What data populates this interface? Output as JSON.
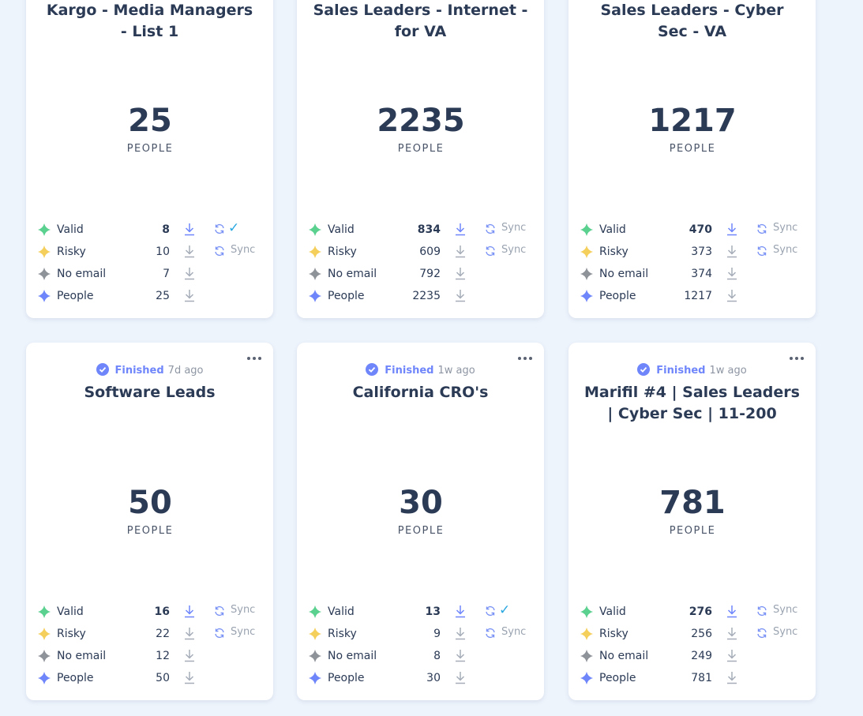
{
  "cards": [
    {
      "title": "Kargo - Media Managers - List 1",
      "unit": "PEOPLE",
      "rows": [
        {
          "label": "Valid",
          "value": 8,
          "color": "#5bd190",
          "sync": "✓"
        },
        {
          "label": "Risky",
          "value": 10,
          "color": "#f5cf5b",
          "sync": "Sync"
        },
        {
          "label": "No email",
          "value": 7,
          "color": "#8e9299",
          "arc_color": "#6f86fb"
        },
        {
          "label": "People",
          "value": 25,
          "color": "#6f86fb"
        }
      ]
    },
    {
      "title": "Sales Leaders - Internet - for VA",
      "unit": "PEOPLE",
      "rows": [
        {
          "label": "Valid",
          "value": 834,
          "color": "#5bd190",
          "sync": "Sync"
        },
        {
          "label": "Risky",
          "value": 609,
          "color": "#f5cf5b",
          "sync": "Sync"
        },
        {
          "label": "No email",
          "value": 792,
          "color": "#8e9299",
          "arc_color": "#6f86fb"
        },
        {
          "label": "People",
          "value": 2235,
          "color": "#6f86fb"
        }
      ]
    },
    {
      "title": "Sales Leaders - Cyber Sec - VA",
      "unit": "PEOPLE",
      "rows": [
        {
          "label": "Valid",
          "value": 470,
          "color": "#5bd190",
          "sync": "Sync"
        },
        {
          "label": "Risky",
          "value": 373,
          "color": "#f5cf5b",
          "sync": "Sync"
        },
        {
          "label": "No email",
          "value": 374,
          "color": "#8e9299",
          "arc_color": "#6f86fb"
        },
        {
          "label": "People",
          "value": 1217,
          "color": "#6f86fb"
        }
      ]
    },
    {
      "status": "Finished",
      "age": "7d ago",
      "title": "Software Leads",
      "unit": "PEOPLE",
      "rows": [
        {
          "label": "Valid",
          "value": 16,
          "color": "#5bd190",
          "sync": "Sync"
        },
        {
          "label": "Risky",
          "value": 22,
          "color": "#f5cf5b",
          "sync": "Sync"
        },
        {
          "label": "No email",
          "value": 12,
          "color": "#8e9299",
          "arc_color": "#6f86fb"
        },
        {
          "label": "People",
          "value": 50,
          "color": "#6f86fb"
        }
      ]
    },
    {
      "status": "Finished",
      "age": "1w ago",
      "title": "California CRO's",
      "unit": "PEOPLE",
      "rows": [
        {
          "label": "Valid",
          "value": 13,
          "color": "#5bd190",
          "sync": "✓"
        },
        {
          "label": "Risky",
          "value": 9,
          "color": "#f5cf5b",
          "sync": "Sync"
        },
        {
          "label": "No email",
          "value": 8,
          "color": "#8e9299",
          "arc_color": "#6f86fb"
        },
        {
          "label": "People",
          "value": 30,
          "color": "#6f86fb"
        }
      ]
    },
    {
      "status": "Finished",
      "age": "1w ago",
      "title": "Marifil #4 | Sales Leaders | Cyber Sec | 11-200",
      "unit": "PEOPLE",
      "rows": [
        {
          "label": "Valid",
          "value": 276,
          "color": "#5bd190",
          "sync": "Sync"
        },
        {
          "label": "Risky",
          "value": 256,
          "color": "#f5cf5b",
          "sync": "Sync"
        },
        {
          "label": "No email",
          "value": 249,
          "color": "#8e9299",
          "arc_color": "#6f86fb"
        },
        {
          "label": "People",
          "value": 781,
          "color": "#6f86fb"
        }
      ]
    }
  ]
}
